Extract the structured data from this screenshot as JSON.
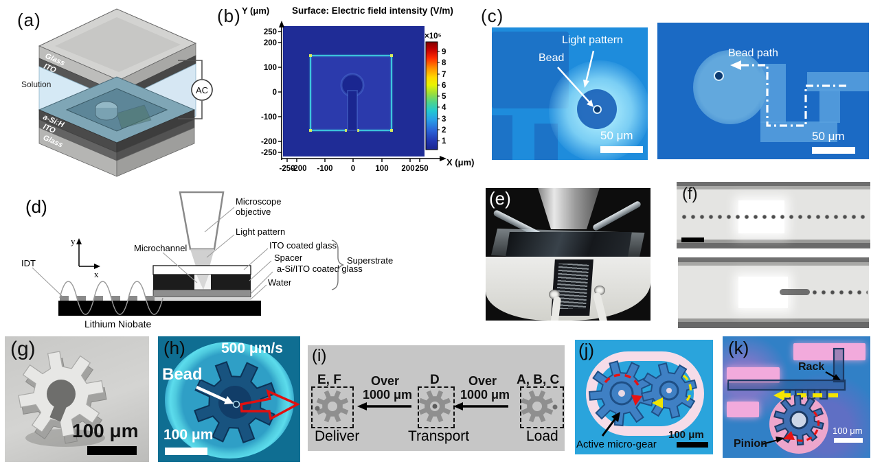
{
  "figure": {
    "type": "multi-panel scientific figure",
    "panel_count": 11
  },
  "panels": {
    "a": {
      "label": "(a)",
      "layers_top": [
        "Glass",
        "ITO"
      ],
      "solution_label": "Solution",
      "layers_bottom": [
        "a-Si:H",
        "ITO",
        "Glass"
      ],
      "ac_source": "AC"
    },
    "b": {
      "label": "(b)",
      "title": "Surface:  Electric field intensity (V/m)",
      "y_axis_label": "Y (μm)",
      "x_axis_label": "X (μm)",
      "y_ticks": [
        "250",
        "200",
        "100",
        "0",
        "-100",
        "-200",
        "-250"
      ],
      "x_ticks": [
        "-250",
        "-200",
        "-100",
        "0",
        "100",
        "200",
        "250"
      ],
      "colorbar_exponent": "×10⁵",
      "colorbar_ticks": [
        "9",
        "8",
        "7",
        "6",
        "5",
        "4",
        "3",
        "2",
        "1"
      ]
    },
    "c": {
      "label": "(c)",
      "left": {
        "light_pattern_label": "Light pattern",
        "bead_label": "Bead",
        "scale": "50 μm"
      },
      "right": {
        "bead_path_label": "Bead path",
        "scale": "50 μm"
      }
    },
    "d": {
      "label": "(d)",
      "microscope_objective_line1": "Microscope",
      "microscope_objective_line2": "objective",
      "light_pattern": "Light pattern",
      "microchannel": "Microchannel",
      "ito_glass": "ITO coated glass",
      "spacer": "Spacer",
      "asi_ito_glass": "a-Si/ITO coated glass",
      "water": "Water",
      "superstrate": "Superstrate",
      "idt": "IDT",
      "substrate": "Lithium Niobate",
      "axis_y": "y",
      "axis_x": "x"
    },
    "e": {
      "label": "(e)"
    },
    "f": {
      "label": "(f)"
    },
    "g": {
      "label": "(g)",
      "scale": "100 μm"
    },
    "h": {
      "label": "(h)",
      "speed": "500 μm/s",
      "bead_label": "Bead",
      "scale": "100 μm"
    },
    "i": {
      "label": "(i)",
      "over": "Over",
      "distance": "1000 μm",
      "groups": [
        {
          "tag": "E, F",
          "caption": "Deliver",
          "bead_position": "left"
        },
        {
          "tag": "D",
          "caption": "Transport",
          "bead_position": "center"
        },
        {
          "tag": "A, B, C",
          "caption": "Load",
          "bead_position": "right"
        }
      ]
    },
    "j": {
      "label": "(j)",
      "annotation": "Active micro-gear",
      "scale": "100 μm"
    },
    "k": {
      "label": "(k)",
      "rack_label": "Rack",
      "pinion_label": "Pinion",
      "scale": "100 μm"
    }
  },
  "colors": {
    "c_left_bg": "#1e8cdc",
    "c_right_bg": "#1b6ac4",
    "b_plot_bg": "#1f2c96",
    "b_square_fill": "#2b3aac",
    "b_outline": "#3fd2e2",
    "h_bg": "#0f6e92",
    "j_bg": "#2aa4dc",
    "j_ring_pink": "#f6dce8",
    "k_pink": "#f2aadc",
    "gear_blue": "#3f80c4",
    "arrow_red": "#e01010",
    "arrow_yellow": "#f5e600",
    "i_bg": "#c6c6c6"
  },
  "chart_data": {
    "type": "heatmap",
    "title": "Surface:  Electric field intensity (V/m)",
    "xlabel": "X (μm)",
    "ylabel": "Y (μm)",
    "xlim": [
      -250,
      250
    ],
    "ylim": [
      -250,
      250
    ],
    "x_ticks": [
      -250,
      -200,
      -100,
      0,
      100,
      200,
      250
    ],
    "y_ticks": [
      250,
      200,
      100,
      0,
      -100,
      -200,
      -250
    ],
    "colorbar": {
      "exponent_note": "×10⁵",
      "ticks": [
        9,
        8,
        7,
        6,
        5,
        4,
        3,
        2,
        1
      ],
      "unit": "V/m"
    },
    "features": "Uniform dark-blue background ≈1×10⁵ V/m; bright square outline of enhanced field from x=-150..150 μm and y=-150..150 μm; dark low-field circle of radius ≈35 μm centered near (15,30) μm joined by a dark vertical stem to a gap in the square's bottom edge at x≈0",
    "legend_position": "right colorbar",
    "grid": false
  }
}
